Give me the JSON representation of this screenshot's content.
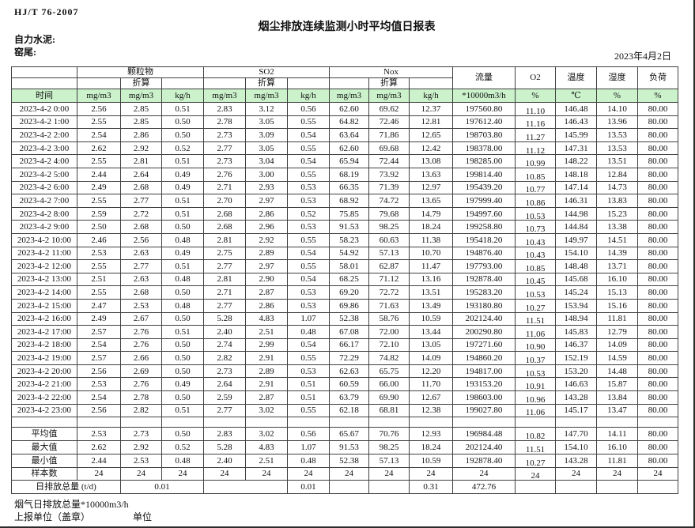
{
  "page": {
    "doc_code": "HJ/T 76-2007",
    "title": "烟尘排放连续监测小时平均值日报表",
    "company": "自力水泥:",
    "point": "窑尾:",
    "date": "2023年4月2日",
    "footer_flow_total": "烟气日排放总量*10000m3/h",
    "footer_report_unit": "上报单位（盖章）",
    "footer_unit_label": "单位"
  },
  "colors": {
    "header_green": "#ccf2cc",
    "border": "#404040"
  },
  "table": {
    "time_header": "时间",
    "converted_label": "折算",
    "groups": [
      {
        "label": "颗粒物"
      },
      {
        "label": "SO2"
      },
      {
        "label": "Nox"
      }
    ],
    "singles": [
      {
        "label": "流量"
      },
      {
        "label": "O2"
      },
      {
        "label": "温度"
      },
      {
        "label": "湿度"
      },
      {
        "label": "负荷"
      }
    ],
    "units": [
      "mg/m3",
      "mg/m3",
      "kg/h",
      "mg/m3",
      "mg/m3",
      "kg/h",
      "mg/m3",
      "mg/m3",
      "kg/h",
      "*10000m3/h",
      "%",
      "℃",
      "%",
      "%"
    ],
    "rows": [
      {
        "t": "2023-4-2 0:00",
        "v": [
          "2.56",
          "2.85",
          "0.51",
          "2.83",
          "3.12",
          "0.56",
          "62.60",
          "69.62",
          "12.37",
          "197560.80",
          "11.10",
          "146.48",
          "14.10",
          "80.00"
        ]
      },
      {
        "t": "2023-4-2 1:00",
        "v": [
          "2.55",
          "2.85",
          "0.50",
          "2.78",
          "3.05",
          "0.55",
          "64.82",
          "72.46",
          "12.81",
          "197612.40",
          "11.16",
          "146.43",
          "13.96",
          "80.00"
        ]
      },
      {
        "t": "2023-4-2 2:00",
        "v": [
          "2.54",
          "2.86",
          "0.50",
          "2.73",
          "3.09",
          "0.54",
          "63.64",
          "71.86",
          "12.65",
          "198703.80",
          "11.27",
          "145.99",
          "13.53",
          "80.00"
        ]
      },
      {
        "t": "2023-4-2 3:00",
        "v": [
          "2.62",
          "2.92",
          "0.52",
          "2.77",
          "3.05",
          "0.55",
          "62.60",
          "69.68",
          "12.42",
          "198378.00",
          "11.12",
          "147.31",
          "13.53",
          "80.00"
        ]
      },
      {
        "t": "2023-4-2 4:00",
        "v": [
          "2.55",
          "2.81",
          "0.51",
          "2.73",
          "3.04",
          "0.54",
          "65.94",
          "72.44",
          "13.08",
          "198285.00",
          "10.99",
          "148.22",
          "13.51",
          "80.00"
        ]
      },
      {
        "t": "2023-4-2 5:00",
        "v": [
          "2.44",
          "2.64",
          "0.49",
          "2.76",
          "3.00",
          "0.55",
          "68.19",
          "73.92",
          "13.63",
          "199814.40",
          "10.85",
          "148.18",
          "12.84",
          "80.00"
        ]
      },
      {
        "t": "2023-4-2 6:00",
        "v": [
          "2.49",
          "2.68",
          "0.49",
          "2.71",
          "2.93",
          "0.53",
          "66.35",
          "71.39",
          "12.97",
          "195439.20",
          "10.77",
          "147.14",
          "14.73",
          "80.00"
        ]
      },
      {
        "t": "2023-4-2 7:00",
        "v": [
          "2.55",
          "2.77",
          "0.51",
          "2.70",
          "2.97",
          "0.53",
          "68.92",
          "74.72",
          "13.65",
          "197999.40",
          "10.86",
          "146.31",
          "13.83",
          "80.00"
        ]
      },
      {
        "t": "2023-4-2 8:00",
        "v": [
          "2.59",
          "2.72",
          "0.51",
          "2.68",
          "2.86",
          "0.52",
          "75.85",
          "79.68",
          "14.79",
          "194997.60",
          "10.53",
          "144.98",
          "15.23",
          "80.00"
        ]
      },
      {
        "t": "2023-4-2 9:00",
        "v": [
          "2.50",
          "2.68",
          "0.50",
          "2.68",
          "2.96",
          "0.53",
          "91.53",
          "98.25",
          "18.24",
          "199258.80",
          "10.73",
          "144.84",
          "13.38",
          "80.00"
        ]
      },
      {
        "t": "2023-4-2 10:00",
        "v": [
          "2.46",
          "2.56",
          "0.48",
          "2.81",
          "2.92",
          "0.55",
          "58.23",
          "60.63",
          "11.38",
          "195418.20",
          "10.43",
          "149.97",
          "14.51",
          "80.00"
        ]
      },
      {
        "t": "2023-4-2 11:00",
        "v": [
          "2.53",
          "2.63",
          "0.49",
          "2.75",
          "2.89",
          "0.54",
          "54.92",
          "57.13",
          "10.70",
          "194876.40",
          "10.43",
          "154.10",
          "14.39",
          "80.00"
        ]
      },
      {
        "t": "2023-4-2 12:00",
        "v": [
          "2.55",
          "2.77",
          "0.51",
          "2.77",
          "2.97",
          "0.55",
          "58.01",
          "62.87",
          "11.47",
          "197793.00",
          "10.85",
          "148.48",
          "13.71",
          "80.00"
        ]
      },
      {
        "t": "2023-4-2 13:00",
        "v": [
          "2.51",
          "2.63",
          "0.48",
          "2.81",
          "2.90",
          "0.54",
          "68.25",
          "71.12",
          "13.16",
          "192878.40",
          "10.45",
          "145.68",
          "16.10",
          "80.00"
        ]
      },
      {
        "t": "2023-4-2 14:00",
        "v": [
          "2.55",
          "2.68",
          "0.50",
          "2.71",
          "2.87",
          "0.53",
          "69.20",
          "72.72",
          "13.51",
          "195283.20",
          "10.53",
          "145.24",
          "15.13",
          "80.00"
        ]
      },
      {
        "t": "2023-4-2 15:00",
        "v": [
          "2.47",
          "2.53",
          "0.48",
          "2.77",
          "2.86",
          "0.53",
          "69.86",
          "71.63",
          "13.49",
          "193180.80",
          "10.27",
          "153.94",
          "15.16",
          "80.00"
        ]
      },
      {
        "t": "2023-4-2 16:00",
        "v": [
          "2.49",
          "2.67",
          "0.50",
          "5.28",
          "4.83",
          "1.07",
          "52.38",
          "58.76",
          "10.59",
          "202124.40",
          "11.51",
          "148.94",
          "11.81",
          "80.00"
        ]
      },
      {
        "t": "2023-4-2 17:00",
        "v": [
          "2.57",
          "2.76",
          "0.51",
          "2.40",
          "2.51",
          "0.48",
          "67.08",
          "72.00",
          "13.44",
          "200290.80",
          "11.06",
          "145.83",
          "12.79",
          "80.00"
        ]
      },
      {
        "t": "2023-4-2 18:00",
        "v": [
          "2.54",
          "2.76",
          "0.50",
          "2.74",
          "2.99",
          "0.54",
          "66.17",
          "72.10",
          "13.05",
          "197271.60",
          "10.90",
          "146.37",
          "14.09",
          "80.00"
        ]
      },
      {
        "t": "2023-4-2 19:00",
        "v": [
          "2.57",
          "2.66",
          "0.50",
          "2.82",
          "2.91",
          "0.55",
          "72.29",
          "74.82",
          "14.09",
          "194860.20",
          "10.37",
          "152.19",
          "14.59",
          "80.00"
        ]
      },
      {
        "t": "2023-4-2 20:00",
        "v": [
          "2.56",
          "2.69",
          "0.50",
          "2.73",
          "2.89",
          "0.53",
          "62.63",
          "65.75",
          "12.20",
          "194817.00",
          "10.53",
          "153.20",
          "14.48",
          "80.00"
        ]
      },
      {
        "t": "2023-4-2 21:00",
        "v": [
          "2.53",
          "2.76",
          "0.49",
          "2.64",
          "2.91",
          "0.51",
          "60.59",
          "66.00",
          "11.70",
          "193153.20",
          "10.91",
          "146.63",
          "15.87",
          "80.00"
        ]
      },
      {
        "t": "2023-4-2 22:00",
        "v": [
          "2.54",
          "2.78",
          "0.50",
          "2.59",
          "2.87",
          "0.51",
          "63.79",
          "69.90",
          "12.67",
          "198603.00",
          "10.96",
          "143.28",
          "13.84",
          "80.00"
        ]
      },
      {
        "t": "2023-4-2 23:00",
        "v": [
          "2.56",
          "2.82",
          "0.51",
          "2.77",
          "3.02",
          "0.55",
          "62.18",
          "68.81",
          "12.38",
          "199027.80",
          "11.06",
          "145.17",
          "13.47",
          "80.00"
        ]
      }
    ],
    "summary": [
      {
        "label": "平均值",
        "v": [
          "2.53",
          "2.73",
          "0.50",
          "2.83",
          "3.02",
          "0.56",
          "65.67",
          "70.76",
          "12.93",
          "196984.48",
          "10.82",
          "147.70",
          "14.11",
          "80.00"
        ]
      },
      {
        "label": "最大值",
        "v": [
          "2.62",
          "2.92",
          "0.52",
          "5.28",
          "4.83",
          "1.07",
          "91.53",
          "98.25",
          "18.24",
          "202124.40",
          "11.51",
          "154.10",
          "16.10",
          "80.00"
        ]
      },
      {
        "label": "最小值",
        "v": [
          "2.44",
          "2.53",
          "0.48",
          "2.40",
          "2.51",
          "0.48",
          "52.38",
          "57.13",
          "10.59",
          "192878.40",
          "10.27",
          "143.28",
          "11.81",
          "80.00"
        ]
      },
      {
        "label": "样本数",
        "v": [
          "24",
          "24",
          "24",
          "24",
          "24",
          "24",
          "24",
          "24",
          "24",
          "24",
          "24",
          "24",
          "24",
          "24"
        ]
      }
    ],
    "total_row": {
      "label": "日排放总量 (t/d)",
      "cells": [
        {
          "span": 2,
          "value": "0.01"
        },
        {
          "span": 2,
          "value": ""
        },
        {
          "span": 1,
          "value": "0.01"
        },
        {
          "span": 1,
          "value": ""
        },
        {
          "span": 1,
          "value": ""
        },
        {
          "span": 1,
          "value": "0.31"
        },
        {
          "span": 1,
          "value": "472.76"
        },
        {
          "span": 1,
          "value": ""
        },
        {
          "span": 1,
          "value": ""
        },
        {
          "span": 1,
          "value": ""
        },
        {
          "span": 1,
          "value": ""
        }
      ]
    }
  }
}
